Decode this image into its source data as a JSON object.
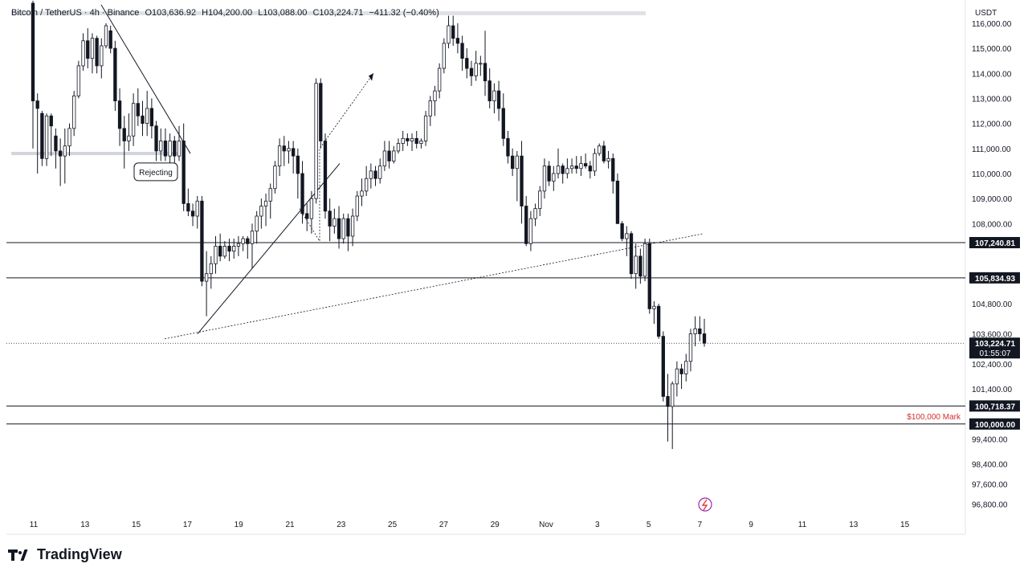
{
  "header": {
    "symbol": "Bitcoin / TetherUS · 4h · Binance",
    "open": "O103,636.92",
    "high": "H104,200.00",
    "low": "L103,088.00",
    "close": "C103,224.71",
    "change": "−411.32 (−0.40%)"
  },
  "axis": {
    "currency": "USDT"
  },
  "brand": {
    "name": "TradingView"
  },
  "colors": {
    "up": "#131722",
    "down": "#131722",
    "mark_label": "#d32f2f"
  },
  "chart_data": {
    "type": "candlestick",
    "y_scale": "linear",
    "ylim": [
      96400,
      116800
    ],
    "y_tick_labels": [
      "116,000.00",
      "115,000.00",
      "114,000.00",
      "113,000.00",
      "112,000.00",
      "111,000.00",
      "110,000.00",
      "109,000.00",
      "108,000.00",
      "104,800.00",
      "103,600.00",
      "102,400.00",
      "101,400.00",
      "99,400.00",
      "98,400.00",
      "97,600.00",
      "96,800.00"
    ],
    "y_tick_values": [
      116000,
      115000,
      114000,
      113000,
      112000,
      111000,
      110000,
      109000,
      108000,
      104800,
      103600,
      102400,
      101400,
      99400,
      98400,
      97600,
      96800
    ],
    "x_tick_labels": [
      "11",
      "13",
      "15",
      "17",
      "19",
      "21",
      "23",
      "25",
      "27",
      "29",
      "Nov",
      "3",
      "5",
      "7",
      "9",
      "11",
      "13",
      "15"
    ],
    "price_labels": [
      {
        "text": "107,240.81",
        "value": 107240.81
      },
      {
        "text": "105,834.93",
        "value": 105834.93
      },
      {
        "text": "103,224.71",
        "value": 103224.71,
        "sub": "01:55:07"
      },
      {
        "text": "100,718.37",
        "value": 100718.37
      },
      {
        "text": "100,000.00",
        "value": 100000.0
      }
    ],
    "annotations": {
      "rejecting": "Rejecting",
      "mark_100k": "$100,000 Mark"
    },
    "candles": [
      [
        116800,
        116900,
        111000,
        112900
      ],
      [
        112900,
        113200,
        110000,
        112600
      ],
      [
        112400,
        112500,
        110300,
        110600
      ],
      [
        110600,
        112400,
        110300,
        112300
      ],
      [
        112300,
        112400,
        110700,
        111900
      ],
      [
        111500,
        111800,
        110200,
        110900
      ],
      [
        110900,
        111400,
        109500,
        110700
      ],
      [
        110700,
        111800,
        109600,
        111100
      ],
      [
        111100,
        112000,
        110700,
        111800
      ],
      [
        111800,
        113300,
        111500,
        113100
      ],
      [
        113100,
        114500,
        113000,
        114300
      ],
      [
        114300,
        115600,
        114100,
        115300
      ],
      [
        115300,
        115800,
        114200,
        114600
      ],
      [
        114600,
        115600,
        114000,
        115400
      ],
      [
        115400,
        115500,
        114000,
        114300
      ],
      [
        114300,
        115400,
        113800,
        115100
      ],
      [
        115100,
        116000,
        115000,
        115900
      ],
      [
        115700,
        115900,
        114800,
        115000
      ],
      [
        115000,
        115300,
        112500,
        112900
      ],
      [
        112900,
        113400,
        111100,
        111800
      ],
      [
        111800,
        112300,
        110200,
        111300
      ],
      [
        111300,
        112400,
        110900,
        111500
      ],
      [
        111500,
        113200,
        111100,
        112800
      ],
      [
        112800,
        113400,
        111900,
        112300
      ],
      [
        112300,
        112900,
        111500,
        112000
      ],
      [
        112000,
        113300,
        111500,
        112600
      ],
      [
        112600,
        113000,
        111400,
        111900
      ],
      [
        111900,
        112100,
        110500,
        110900
      ],
      [
        110900,
        111800,
        110500,
        111300
      ],
      [
        111300,
        111800,
        110500,
        110700
      ],
      [
        110700,
        111600,
        110400,
        111300
      ],
      [
        111300,
        111500,
        110400,
        110700
      ],
      [
        110700,
        111900,
        110500,
        111300
      ],
      [
        111300,
        112000,
        108500,
        108800
      ],
      [
        108800,
        109400,
        108300,
        108500
      ],
      [
        108500,
        108800,
        107900,
        108300
      ],
      [
        108300,
        109100,
        107800,
        108900
      ],
      [
        108900,
        109100,
        105500,
        105700
      ],
      [
        105700,
        106900,
        104300,
        106000
      ],
      [
        106000,
        106700,
        105400,
        106400
      ],
      [
        106400,
        107500,
        106000,
        107100
      ],
      [
        107100,
        107600,
        106500,
        106700
      ],
      [
        106700,
        107300,
        106600,
        107100
      ],
      [
        107100,
        107400,
        106500,
        106900
      ],
      [
        106900,
        107400,
        106600,
        107100
      ],
      [
        107100,
        107500,
        106700,
        107200
      ],
      [
        107200,
        107500,
        106900,
        107400
      ],
      [
        107400,
        107500,
        106600,
        107200
      ],
      [
        107200,
        108000,
        106200,
        107700
      ],
      [
        107700,
        108500,
        107200,
        108300
      ],
      [
        108300,
        109000,
        107800,
        108700
      ],
      [
        108700,
        109200,
        107900,
        108900
      ],
      [
        108900,
        109600,
        108200,
        109400
      ],
      [
        109400,
        110500,
        109200,
        110300
      ],
      [
        110300,
        111400,
        109900,
        111100
      ],
      [
        111100,
        111500,
        110300,
        110900
      ],
      [
        110900,
        111300,
        110400,
        111000
      ],
      [
        111000,
        111300,
        110000,
        110700
      ],
      [
        110700,
        111000,
        109000,
        110000
      ],
      [
        110000,
        110500,
        108000,
        108400
      ],
      [
        108400,
        108800,
        107700,
        108200
      ],
      [
        108200,
        109300,
        107600,
        109000
      ],
      [
        109000,
        113800,
        108800,
        113600
      ],
      [
        113600,
        113800,
        111000,
        111300
      ],
      [
        111300,
        111600,
        108200,
        108500
      ],
      [
        108500,
        109000,
        107300,
        107900
      ],
      [
        107900,
        108600,
        107600,
        108200
      ],
      [
        108200,
        108700,
        107000,
        107400
      ],
      [
        107400,
        108400,
        107200,
        108200
      ],
      [
        108200,
        108400,
        106900,
        107500
      ],
      [
        107500,
        108600,
        107100,
        108300
      ],
      [
        108300,
        109300,
        108100,
        109100
      ],
      [
        109100,
        109800,
        108700,
        109300
      ],
      [
        109300,
        110300,
        109100,
        109800
      ],
      [
        109800,
        110400,
        109400,
        110100
      ],
      [
        110100,
        110300,
        109500,
        109800
      ],
      [
        109800,
        110600,
        109600,
        110300
      ],
      [
        110300,
        111300,
        110100,
        110900
      ],
      [
        110900,
        111300,
        110200,
        110500
      ],
      [
        110500,
        111100,
        110400,
        110900
      ],
      [
        110900,
        111400,
        110800,
        111200
      ],
      [
        111200,
        111700,
        110900,
        111400
      ],
      [
        111400,
        111600,
        111100,
        111300
      ],
      [
        111300,
        111600,
        110900,
        111400
      ],
      [
        111400,
        111700,
        111000,
        111200
      ],
      [
        111200,
        111400,
        111000,
        111300
      ],
      [
        111300,
        112500,
        111100,
        112300
      ],
      [
        112300,
        113100,
        111900,
        112900
      ],
      [
        112900,
        113500,
        112300,
        113300
      ],
      [
        113300,
        114400,
        113000,
        114200
      ],
      [
        114200,
        115400,
        114000,
        115200
      ],
      [
        115200,
        116300,
        115000,
        115900
      ],
      [
        115900,
        116300,
        115100,
        115400
      ],
      [
        115400,
        116000,
        114800,
        115200
      ],
      [
        115200,
        115500,
        114100,
        114600
      ],
      [
        114600,
        115000,
        113800,
        114200
      ],
      [
        114200,
        114500,
        113500,
        113900
      ],
      [
        113900,
        114900,
        113700,
        114400
      ],
      [
        114400,
        114700,
        113900,
        114400
      ],
      [
        114400,
        115700,
        113100,
        113700
      ],
      [
        113700,
        114200,
        112600,
        112900
      ],
      [
        112900,
        113600,
        112400,
        113300
      ],
      [
        113300,
        113700,
        112100,
        112600
      ],
      [
        112600,
        113200,
        111100,
        111400
      ],
      [
        111400,
        111700,
        110400,
        110700
      ],
      [
        110700,
        111000,
        109900,
        110200
      ],
      [
        110200,
        110900,
        108900,
        110700
      ],
      [
        110700,
        111300,
        108000,
        108700
      ],
      [
        108700,
        109100,
        107100,
        107200
      ],
      [
        107200,
        108500,
        106900,
        108200
      ],
      [
        108200,
        108800,
        107900,
        108600
      ],
      [
        108600,
        109500,
        108300,
        109300
      ],
      [
        109300,
        110600,
        109000,
        110300
      ],
      [
        110300,
        110500,
        109500,
        109700
      ],
      [
        109700,
        110300,
        109300,
        110000
      ],
      [
        110000,
        111000,
        109800,
        110300
      ],
      [
        110300,
        110400,
        109600,
        110000
      ],
      [
        110000,
        110600,
        109800,
        110200
      ],
      [
        110200,
        110600,
        110000,
        110300
      ],
      [
        110300,
        110700,
        110000,
        110200
      ],
      [
        110200,
        110700,
        109900,
        110400
      ],
      [
        110400,
        110800,
        110200,
        110300
      ],
      [
        110300,
        110500,
        109800,
        110100
      ],
      [
        110100,
        111000,
        109900,
        110800
      ],
      [
        110800,
        111200,
        110700,
        111100
      ],
      [
        111100,
        111300,
        110400,
        110500
      ],
      [
        110500,
        110900,
        110200,
        110600
      ],
      [
        110600,
        110800,
        109200,
        109700
      ],
      [
        109700,
        110000,
        108000,
        108000
      ],
      [
        108000,
        108100,
        107300,
        107400
      ],
      [
        107400,
        107900,
        106700,
        107600
      ],
      [
        107600,
        107700,
        105800,
        106000
      ],
      [
        106000,
        107200,
        105400,
        106700
      ],
      [
        106700,
        107000,
        105600,
        105900
      ],
      [
        105900,
        107400,
        105700,
        107200
      ],
      [
        107200,
        107400,
        104400,
        104600
      ],
      [
        104600,
        104900,
        104000,
        104700
      ],
      [
        104700,
        104800,
        103400,
        103500
      ],
      [
        103500,
        103700,
        100900,
        101100
      ],
      [
        101100,
        102000,
        99300,
        100700
      ],
      [
        100700,
        101700,
        99000,
        101600
      ],
      [
        101600,
        102500,
        101100,
        102200
      ],
      [
        102200,
        102400,
        101400,
        102000
      ],
      [
        102000,
        102800,
        101700,
        102500
      ],
      [
        102500,
        103800,
        102100,
        103600
      ],
      [
        103600,
        104300,
        103100,
        103800
      ],
      [
        103800,
        104300,
        103300,
        103600
      ],
      [
        103600,
        104200,
        103088,
        103224.71
      ]
    ]
  }
}
